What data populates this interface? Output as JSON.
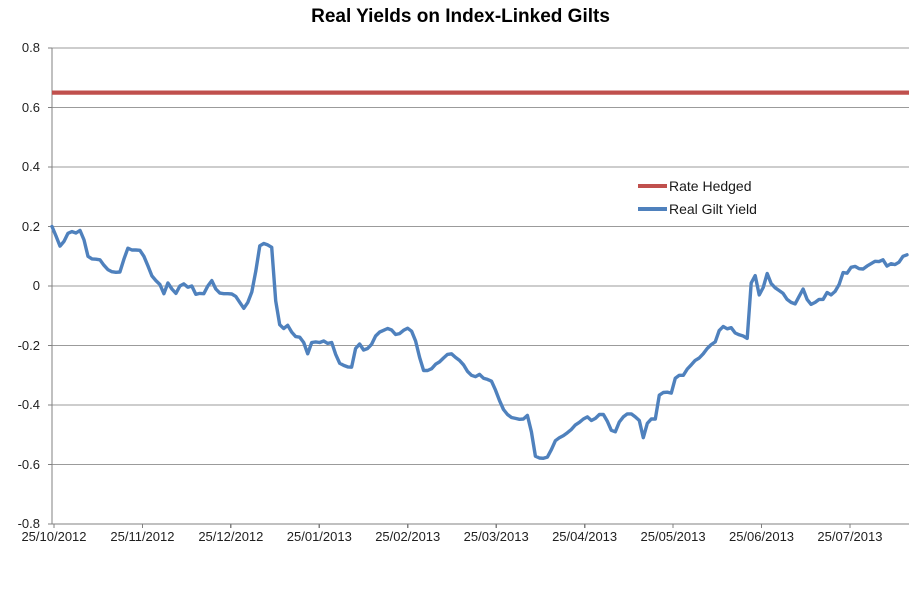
{
  "title": "Real Yields on Index-Linked Gilts",
  "legend": {
    "items": [
      {
        "label": "Rate Hedged",
        "color": "#C0504D"
      },
      {
        "label": "Real Gilt Yield",
        "color": "#4F81BD"
      }
    ]
  },
  "chart_data": {
    "type": "line",
    "title": "Real Yields on Index-Linked Gilts",
    "xlabel": "",
    "ylabel": "",
    "x_labels": [
      "25/10/2012",
      "25/11/2012",
      "25/12/2012",
      "25/01/2013",
      "25/02/2013",
      "25/03/2013",
      "25/04/2013",
      "25/05/2013",
      "25/06/2013",
      "25/07/2013"
    ],
    "y_ticks": [
      0.8,
      0.6,
      0.4,
      0.2,
      0,
      -0.2,
      -0.4,
      -0.6,
      -0.8
    ],
    "ylim": [
      -0.8,
      0.8
    ],
    "grid": "horizontal",
    "legend_position": "inside-center-right",
    "colors": {
      "gridline": "#9B9B9B",
      "axis": "#808080",
      "tick_text": "#1F1F1F"
    },
    "series": [
      {
        "name": "Rate Hedged",
        "color": "#C0504D",
        "style": "constant-line",
        "value": 0.65
      },
      {
        "name": "Real Gilt Yield",
        "color": "#4F81BD",
        "style": "daily-line",
        "values": [
          0.2,
          0.168,
          0.134,
          0.15,
          0.177,
          0.183,
          0.178,
          0.187,
          0.155,
          0.1,
          0.091,
          0.09,
          0.088,
          0.07,
          0.055,
          0.048,
          0.046,
          0.047,
          0.09,
          0.127,
          0.121,
          0.121,
          0.12,
          0.1,
          0.068,
          0.034,
          0.018,
          0.005,
          -0.026,
          0.01,
          -0.01,
          -0.025,
          0.0,
          0.007,
          -0.004,
          0.0,
          -0.028,
          -0.025,
          -0.026,
          0.0,
          0.018,
          -0.01,
          -0.024,
          -0.026,
          -0.026,
          -0.027,
          -0.035,
          -0.055,
          -0.075,
          -0.055,
          -0.02,
          0.05,
          0.135,
          0.143,
          0.138,
          0.13,
          -0.05,
          -0.13,
          -0.143,
          -0.132,
          -0.155,
          -0.17,
          -0.172,
          -0.19,
          -0.228,
          -0.19,
          -0.188,
          -0.19,
          -0.185,
          -0.193,
          -0.19,
          -0.23,
          -0.26,
          -0.267,
          -0.272,
          -0.273,
          -0.21,
          -0.195,
          -0.215,
          -0.21,
          -0.196,
          -0.168,
          -0.155,
          -0.149,
          -0.143,
          -0.148,
          -0.163,
          -0.16,
          -0.149,
          -0.142,
          -0.152,
          -0.185,
          -0.24,
          -0.284,
          -0.284,
          -0.278,
          -0.263,
          -0.255,
          -0.242,
          -0.23,
          -0.228,
          -0.24,
          -0.25,
          -0.265,
          -0.287,
          -0.3,
          -0.305,
          -0.297,
          -0.31,
          -0.314,
          -0.32,
          -0.35,
          -0.385,
          -0.415,
          -0.432,
          -0.442,
          -0.445,
          -0.448,
          -0.447,
          -0.435,
          -0.49,
          -0.572,
          -0.578,
          -0.579,
          -0.575,
          -0.55,
          -0.52,
          -0.51,
          -0.503,
          -0.493,
          -0.482,
          -0.467,
          -0.458,
          -0.447,
          -0.44,
          -0.452,
          -0.445,
          -0.432,
          -0.432,
          -0.455,
          -0.485,
          -0.49,
          -0.457,
          -0.44,
          -0.43,
          -0.43,
          -0.44,
          -0.452,
          -0.51,
          -0.462,
          -0.447,
          -0.447,
          -0.367,
          -0.358,
          -0.357,
          -0.36,
          -0.31,
          -0.3,
          -0.3,
          -0.279,
          -0.265,
          -0.25,
          -0.242,
          -0.228,
          -0.21,
          -0.197,
          -0.188,
          -0.15,
          -0.136,
          -0.144,
          -0.14,
          -0.158,
          -0.164,
          -0.168,
          -0.176,
          0.01,
          0.035,
          -0.03,
          -0.005,
          0.042,
          0.008,
          -0.006,
          -0.015,
          -0.025,
          -0.045,
          -0.055,
          -0.06,
          -0.035,
          -0.01,
          -0.045,
          -0.062,
          -0.055,
          -0.045,
          -0.045,
          -0.022,
          -0.03,
          -0.018,
          0.005,
          0.045,
          0.043,
          0.063,
          0.066,
          0.058,
          0.057,
          0.067,
          0.075,
          0.083,
          0.082,
          0.088,
          0.067,
          0.075,
          0.072,
          0.08,
          0.1,
          0.105
        ]
      }
    ]
  }
}
